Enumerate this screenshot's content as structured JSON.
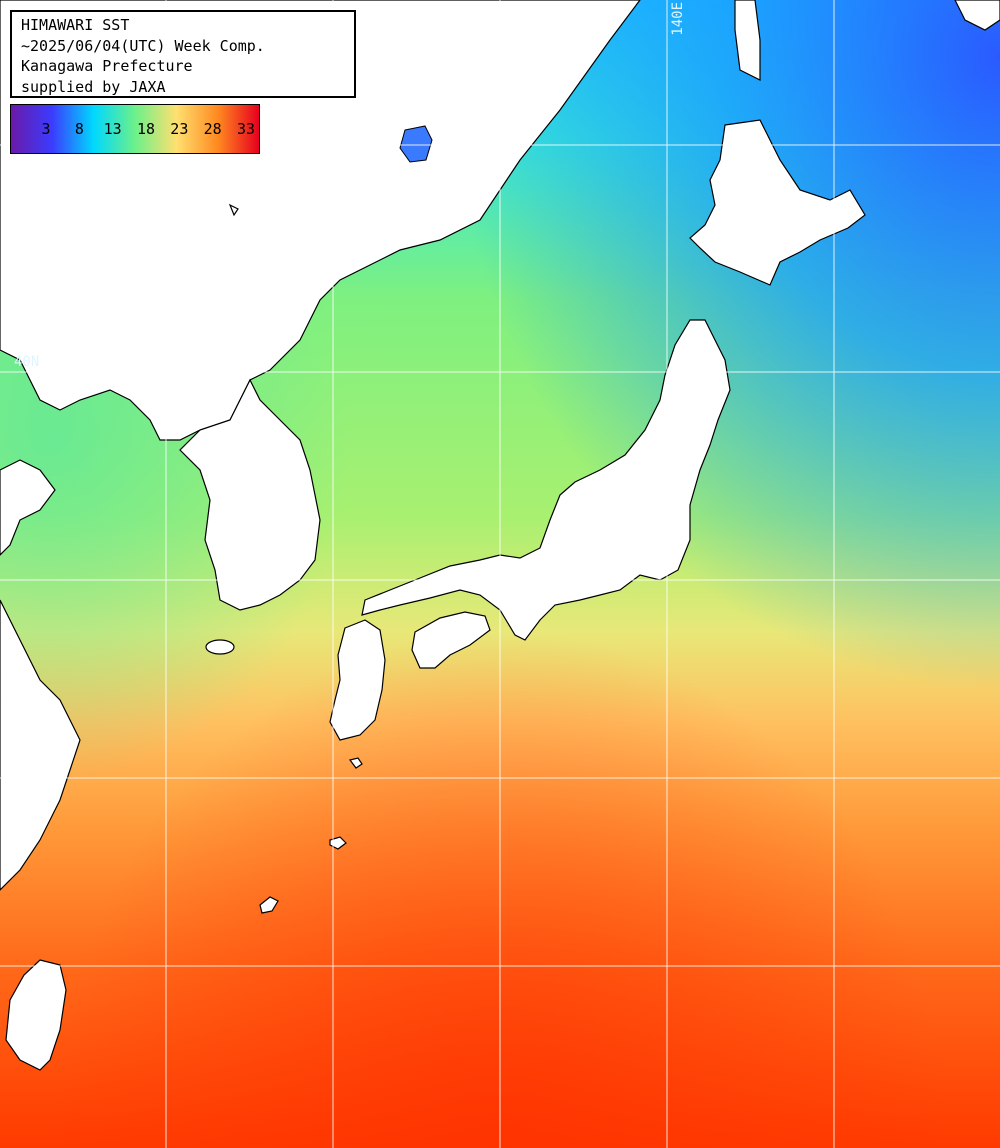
{
  "header": {
    "line1": "HIMAWARI SST",
    "line2": "~2025/06/04(UTC) Week Comp.",
    "line3": "Kanagawa Prefecture",
    "line4": "supplied by JAXA"
  },
  "legend": {
    "ticks": [
      "3",
      "8",
      "13",
      "18",
      "23",
      "28",
      "33"
    ],
    "colors": [
      "#6a1aa8",
      "#3b3cff",
      "#00d8ff",
      "#6cf08a",
      "#ffe070",
      "#ff8a20",
      "#e8001e"
    ]
  },
  "grid_labels": {
    "lat_label": "40N",
    "lon_label": "140E"
  },
  "colors": {
    "land": "#ffffff",
    "coast": "#000000",
    "grid": "#ffffff"
  }
}
